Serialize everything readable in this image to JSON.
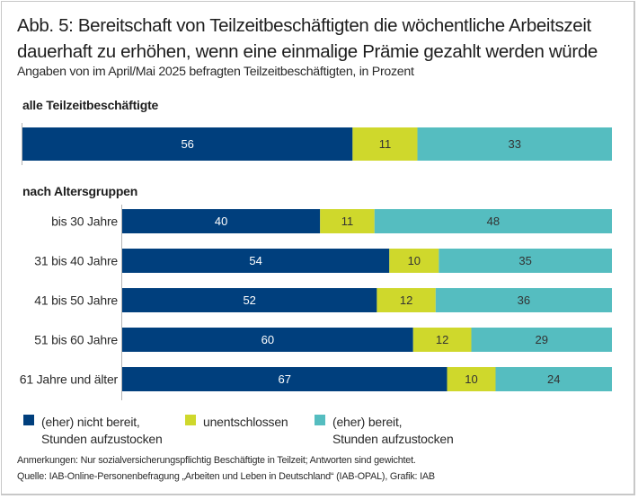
{
  "chart_data": {
    "type": "bar",
    "orientation": "horizontal",
    "stacked": true,
    "title": "Abb. 5: Bereitschaft von Teilzeitbeschäftigten die wöchentliche Arbeitszeit dauerhaft zu erhöhen, wenn eine einmalige Prämie gezahlt werden würde",
    "subtitle": "Angaben von im April/Mai 2025 befragten Teilzeitbeschäftigten, in Prozent",
    "xlabel": "",
    "ylabel": "",
    "xlim": [
      0,
      100
    ],
    "grid": false,
    "legend_position": "bottom",
    "groups": [
      {
        "label": "alle Teilzeitbeschäftigte",
        "categories": [
          ""
        ],
        "rows": [
          {
            "category": "",
            "values": [
              56,
              11,
              33
            ]
          }
        ]
      },
      {
        "label": "nach Altersgruppen",
        "categories": [
          "bis 30 Jahre",
          "31 bis 40 Jahre",
          "41 bis 50 Jahre",
          "51 bis 60 Jahre",
          "61 Jahre und älter"
        ],
        "rows": [
          {
            "category": "bis 30 Jahre",
            "values": [
              40,
              11,
              48
            ]
          },
          {
            "category": "31 bis 40 Jahre",
            "values": [
              54,
              10,
              35
            ]
          },
          {
            "category": "41 bis 50 Jahre",
            "values": [
              52,
              12,
              36
            ]
          },
          {
            "category": "51 bis 60 Jahre",
            "values": [
              60,
              12,
              29
            ]
          },
          {
            "category": "61 Jahre und älter",
            "values": [
              67,
              10,
              24
            ]
          }
        ]
      }
    ],
    "series": [
      {
        "name": "(eher) nicht bereit,\nStunden aufzustocken",
        "color": "#003f7d",
        "label_color": "#ffffff"
      },
      {
        "name": "unentschlossen",
        "color": "#cfd82c",
        "label_color": "#333333"
      },
      {
        "name": "(eher) bereit,\nStunden aufzustocken",
        "color": "#55bdc0",
        "label_color": "#333333"
      }
    ]
  },
  "notes": {
    "remarks": "Anmerkungen: Nur sozialversicherungspflichtig Beschäftigte in Teilzeit; Antworten sind gewichtet.",
    "source": "Quelle: IAB-Online-Personenbefragung „Arbeiten und Leben in Deutschland“ (IAB-OPAL), Grafik: IAB"
  }
}
